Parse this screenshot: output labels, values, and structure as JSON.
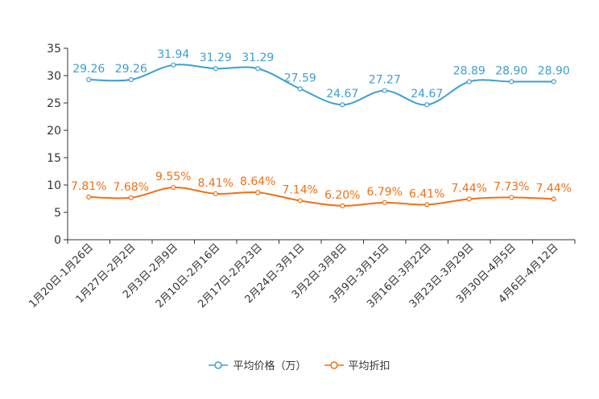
{
  "chart_data": {
    "type": "line",
    "categories": [
      "1月20日-1月26日",
      "1月27日-2月2日",
      "2月3日-2月9日",
      "2月10日-2月16日",
      "2月17日-2月23日",
      "2月24日-3月1日",
      "3月2日-3月8日",
      "3月9日-3月15日",
      "3月16日-3月22日",
      "3月23日-3月29日",
      "3月30日-4月5日",
      "4月6日-4月12日"
    ],
    "series": [
      {
        "name": "平均价格（万）",
        "color": "#3d9fd1",
        "values": [
          29.26,
          29.26,
          31.94,
          31.29,
          31.29,
          27.59,
          24.67,
          27.27,
          24.67,
          28.89,
          28.9,
          28.9
        ],
        "labels": [
          "29.26",
          "29.26",
          "31.94",
          "31.29",
          "31.29",
          "27.59",
          "24.67",
          "27.27",
          "24.67",
          "28.89",
          "28.90",
          "28.90"
        ]
      },
      {
        "name": "平均折扣",
        "color": "#f26f13",
        "values": [
          7.81,
          7.68,
          9.55,
          8.41,
          8.64,
          7.14,
          6.2,
          6.79,
          6.41,
          7.44,
          7.73,
          7.44
        ],
        "labels": [
          "7.81%",
          "7.68%",
          "9.55%",
          "8.41%",
          "8.64%",
          "7.14%",
          "6.20%",
          "6.79%",
          "6.41%",
          "7.44%",
          "7.73%",
          "7.44%"
        ]
      }
    ],
    "y_ticks": [
      "0",
      "5",
      "10",
      "15",
      "20",
      "25",
      "30",
      "35"
    ],
    "ylim": [
      0,
      35
    ],
    "title": "",
    "xlabel": "",
    "ylabel": "",
    "grid": false,
    "legend_position": "bottom-center"
  }
}
